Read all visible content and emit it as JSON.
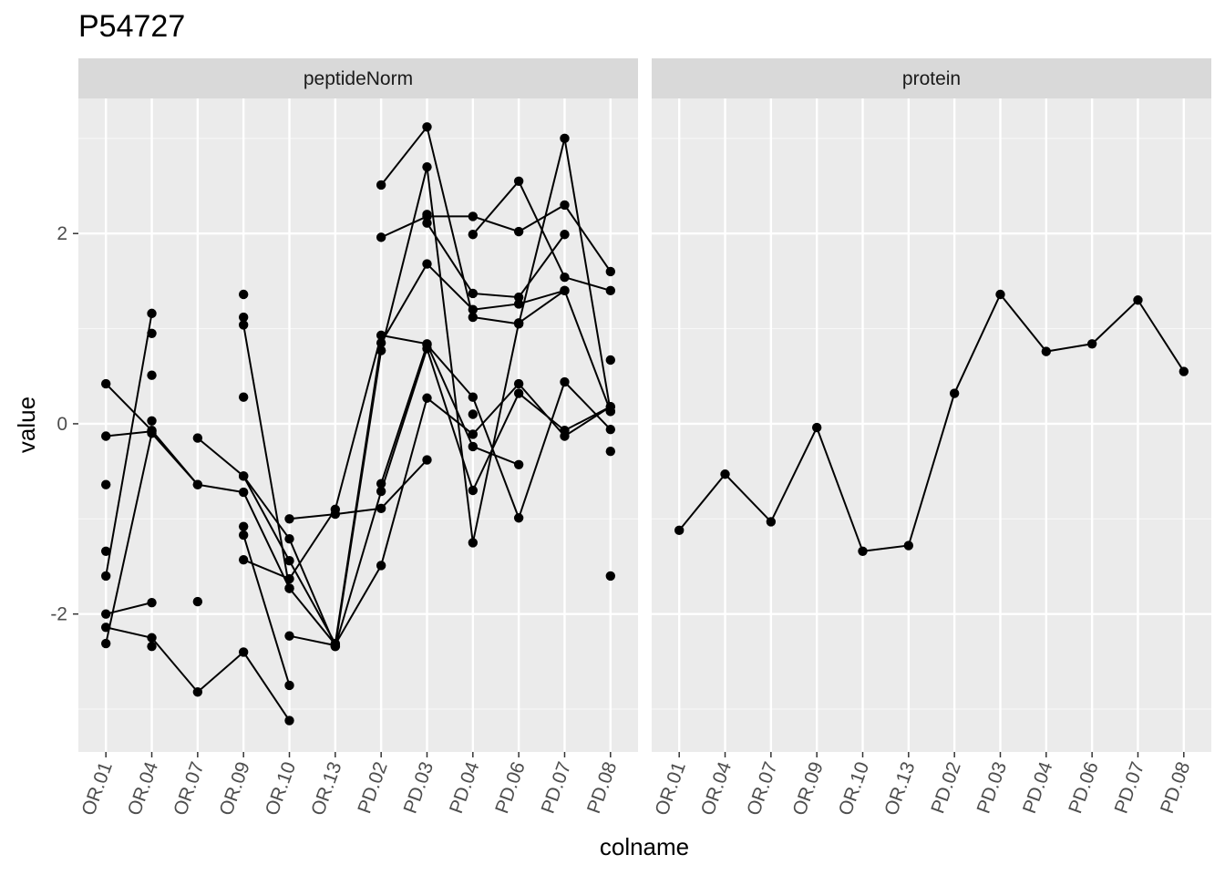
{
  "chart_data": {
    "type": "line",
    "title": "P54727",
    "xlabel": "colname",
    "ylabel": "value",
    "ylim": [
      -3.45,
      3.42
    ],
    "y_ticks": [
      -2,
      0,
      2
    ],
    "y_tick_labels": [
      "-2",
      "0",
      "2"
    ],
    "categories": [
      "OR.01",
      "OR.04",
      "OR.07",
      "OR.09",
      "OR.10",
      "OR.13",
      "PD.02",
      "PD.03",
      "PD.04",
      "PD.06",
      "PD.07",
      "PD.08"
    ],
    "grid": true,
    "panels": [
      {
        "name": "peptideNorm",
        "series": [
          {
            "values": [
              0.42,
              -0.07,
              -0.64,
              -0.72,
              -1.73,
              -2.32,
              -1.49,
              0.27,
              -0.11,
              0.42,
              -0.13,
              0.18
            ]
          },
          {
            "values": [
              -0.13,
              -0.08,
              null,
              -0.55,
              -1.44,
              -2.31,
              0.85,
              1.68,
              1.2,
              1.26,
              1.4,
              0.13
            ]
          },
          {
            "values": [
              -1.6,
              1.16,
              null,
              null,
              null,
              null,
              2.51,
              3.12,
              1.12,
              1.05,
              3.0,
              0.13
            ]
          },
          {
            "values": [
              -2.0,
              -1.88,
              null,
              1.04,
              -1.73,
              null,
              -0.63,
              0.83,
              0.28,
              -0.99,
              0.44,
              -0.06
            ]
          },
          {
            "values": [
              -2.14,
              -2.25,
              -2.82,
              -2.4,
              -3.12,
              null,
              null,
              null,
              null,
              null,
              null,
              null
            ]
          },
          {
            "values": [
              -2.31,
              -0.1,
              -0.64,
              null,
              null,
              -2.34,
              0.77,
              2.7,
              -1.25,
              1.06,
              1.4,
              null
            ]
          },
          {
            "values": [
              null,
              null,
              -0.15,
              -0.55,
              -1.21,
              -2.34,
              -0.71,
              0.79,
              -0.7,
              0.32,
              -0.07,
              0.18
            ]
          },
          {
            "values": [
              null,
              null,
              null,
              -1.43,
              -1.63,
              -0.9,
              0.93,
              0.84,
              -0.24,
              -0.43,
              null,
              null
            ]
          },
          {
            "values": [
              null,
              null,
              null,
              -1.17,
              -2.75,
              null,
              1.96,
              2.18,
              2.18,
              2.02,
              2.3,
              1.6
            ]
          },
          {
            "values": [
              null,
              null,
              null,
              null,
              -1.0,
              -0.95,
              -0.89,
              -0.38,
              null,
              null,
              null,
              null
            ]
          },
          {
            "values": [
              null,
              null,
              null,
              null,
              -2.23,
              -2.33,
              null,
              null,
              null,
              null,
              null,
              null
            ]
          },
          {
            "values": [
              null,
              null,
              null,
              null,
              null,
              null,
              null,
              2.11,
              1.37,
              1.33,
              1.99,
              null
            ]
          },
          {
            "values": [
              null,
              null,
              null,
              null,
              null,
              null,
              null,
              null,
              1.99,
              2.55,
              1.54,
              1.4
            ]
          }
        ],
        "points": [
          {
            "x": "OR.01",
            "y": -0.64
          },
          {
            "x": "OR.01",
            "y": -1.34
          },
          {
            "x": "OR.04",
            "y": 0.95
          },
          {
            "x": "OR.04",
            "y": 0.51
          },
          {
            "x": "OR.04",
            "y": 0.03
          },
          {
            "x": "OR.04",
            "y": -2.34
          },
          {
            "x": "OR.07",
            "y": -1.87
          },
          {
            "x": "OR.09",
            "y": 1.36
          },
          {
            "x": "OR.09",
            "y": 1.12
          },
          {
            "x": "OR.09",
            "y": 0.28
          },
          {
            "x": "OR.09",
            "y": -1.08
          },
          {
            "x": "PD.03",
            "y": 2.2
          },
          {
            "x": "PD.04",
            "y": 0.1
          },
          {
            "x": "PD.08",
            "y": 0.67
          },
          {
            "x": "PD.08",
            "y": -0.29
          },
          {
            "x": "PD.08",
            "y": -1.6
          }
        ]
      },
      {
        "name": "protein",
        "series": [
          {
            "values": [
              -1.12,
              -0.53,
              -1.03,
              -0.04,
              -1.34,
              -1.28,
              0.32,
              1.36,
              0.76,
              0.84,
              1.3,
              0.55
            ]
          }
        ],
        "points": []
      }
    ]
  }
}
